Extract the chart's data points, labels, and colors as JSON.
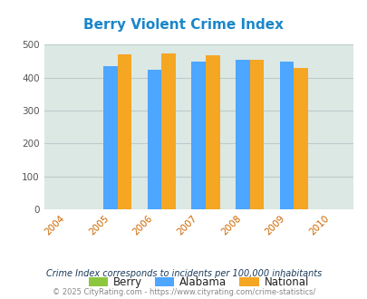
{
  "title": "Berry Violent Crime Index",
  "years": [
    2004,
    2005,
    2006,
    2007,
    2008,
    2009,
    2010
  ],
  "plot_years": [
    2005,
    2006,
    2007,
    2008,
    2009
  ],
  "berry": [
    0,
    0,
    0,
    0,
    0
  ],
  "alabama": [
    435,
    425,
    448,
    455,
    450
  ],
  "national": [
    470,
    473,
    467,
    454,
    430
  ],
  "berry_color": "#8dc63f",
  "alabama_color": "#4da6ff",
  "national_color": "#f5a623",
  "bg_color": "#dce8e4",
  "ylim": [
    0,
    500
  ],
  "yticks": [
    0,
    100,
    200,
    300,
    400,
    500
  ],
  "bar_width": 0.32,
  "title_color": "#1a86c8",
  "xlabel_color": "#cc6600",
  "grid_color": "#bbcccc",
  "footer_text": "Crime Index corresponds to incidents per 100,000 inhabitants",
  "copyright_text": "© 2025 CityRating.com - https://www.cityrating.com/crime-statistics/",
  "legend_labels": [
    "Berry",
    "Alabama",
    "National"
  ],
  "footer_color": "#1a3a5c",
  "copyright_color": "#888888"
}
